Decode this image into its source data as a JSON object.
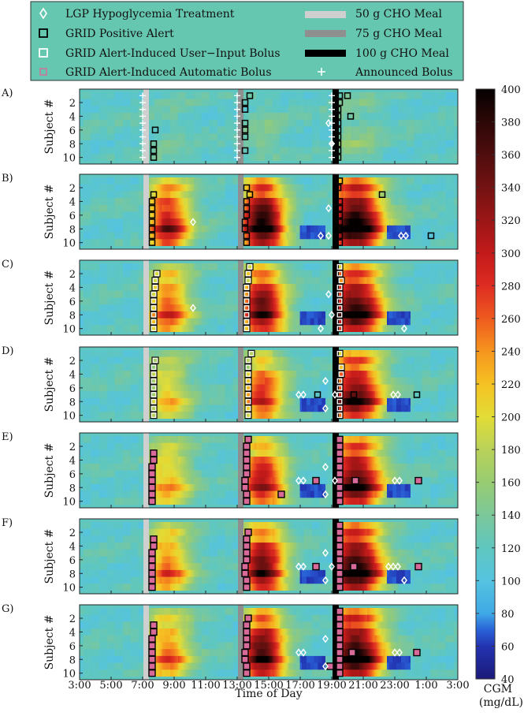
{
  "chart_data": {
    "type": "heatmap",
    "xlabel": "Time of Day",
    "x_ticks": [
      "3:00",
      "5:00",
      "7:00",
      "9:00",
      "11:00",
      "13:00",
      "15:00",
      "17:00",
      "19:00",
      "21:00",
      "23:00",
      "1:00",
      "3:00"
    ],
    "xlim_hours": [
      3,
      27
    ],
    "ylabel": "Subject #",
    "y_ticks": [
      "2",
      "4",
      "6",
      "8",
      "10"
    ],
    "subjects": 10,
    "panels": [
      "A)",
      "B)",
      "C)",
      "D)",
      "E)",
      "F)",
      "G)"
    ],
    "colorbar": {
      "label_line1": "CGM",
      "label_line2": "(mg/dL)",
      "range": [
        40,
        400
      ],
      "ticks": [
        "40",
        "60",
        "80",
        "100",
        "120",
        "140",
        "160",
        "180",
        "200",
        "220",
        "240",
        "260",
        "280",
        "300",
        "320",
        "340",
        "360",
        "380",
        "400"
      ]
    },
    "meals": [
      {
        "time": 7.0,
        "grams": 50,
        "color": "#cfcfcf"
      },
      {
        "time": 13.0,
        "grams": 75,
        "color": "#8f8f8f"
      },
      {
        "time": 19.0,
        "grams": 100,
        "color": "#000000"
      }
    ],
    "legend": {
      "lgp_hypo": "LGP Hypoglycemia Treatment",
      "grid_alert": "GRID Positive Alert",
      "grid_user_bolus": "GRID Alert-Induced User−Input Bolus",
      "grid_auto_bolus": "GRID Alert-Induced Automatic Bolus",
      "meal50": "50 g CHO Meal",
      "meal75": "75 g CHO Meal",
      "meal100": "100 g CHO Meal",
      "announced": "Announced Bolus",
      "bg_color": "#66c7b0"
    },
    "colors": {
      "lgp_marker": "#ffffff",
      "grid_alert": "#000000",
      "user_bolus": "#ffffff",
      "auto_bolus": "#d86a9a"
    },
    "markers": {
      "A)": {
        "announced": [
          {
            "t": 7.0,
            "subjects": [
              1,
              2,
              3,
              4,
              5,
              6,
              7,
              8,
              9,
              10
            ]
          },
          {
            "t": 13.0,
            "subjects": [
              1,
              2,
              3,
              4,
              5,
              6,
              7,
              8,
              9,
              10
            ]
          },
          {
            "t": 19.0,
            "subjects": [
              1,
              2,
              3,
              4,
              5,
              6,
              7,
              8,
              9,
              10
            ]
          }
        ],
        "alerts": [
          {
            "t": 7.8,
            "s": 6
          },
          {
            "t": 7.7,
            "s": 8
          },
          {
            "t": 7.7,
            "s": 9
          },
          {
            "t": 7.7,
            "s": 10
          },
          {
            "t": 13.8,
            "s": 1
          },
          {
            "t": 13.5,
            "s": 2
          },
          {
            "t": 13.5,
            "s": 3
          },
          {
            "t": 13.5,
            "s": 5
          },
          {
            "t": 13.5,
            "s": 6
          },
          {
            "t": 13.5,
            "s": 7
          },
          {
            "t": 13.5,
            "s": 9
          },
          {
            "t": 19.5,
            "s": 1
          },
          {
            "t": 19.5,
            "s": 2
          },
          {
            "t": 19.4,
            "s": 3
          },
          {
            "t": 19.4,
            "s": 4
          },
          {
            "t": 19.4,
            "s": 5
          },
          {
            "t": 19.4,
            "s": 6
          },
          {
            "t": 19.4,
            "s": 7
          },
          {
            "t": 19.4,
            "s": 8
          },
          {
            "t": 19.4,
            "s": 9
          },
          {
            "t": 19.4,
            "s": 10
          },
          {
            "t": 20.0,
            "s": 1
          },
          {
            "t": 20.2,
            "s": 4
          }
        ],
        "lgp": [
          {
            "t": 18.8,
            "s": 5
          },
          {
            "t": 19.0,
            "s": 8
          }
        ]
      },
      "B)": {
        "alerts": [
          {
            "t": 7.7,
            "s": 3
          },
          {
            "t": 7.6,
            "s": 4
          },
          {
            "t": 7.6,
            "s": 5
          },
          {
            "t": 7.6,
            "s": 6
          },
          {
            "t": 7.6,
            "s": 7
          },
          {
            "t": 7.6,
            "s": 8
          },
          {
            "t": 7.6,
            "s": 9
          },
          {
            "t": 7.6,
            "s": 10
          },
          {
            "t": 13.6,
            "s": 2
          },
          {
            "t": 13.8,
            "s": 3
          },
          {
            "t": 13.6,
            "s": 4
          },
          {
            "t": 13.6,
            "s": 5
          },
          {
            "t": 13.6,
            "s": 6
          },
          {
            "t": 13.5,
            "s": 7
          },
          {
            "t": 13.5,
            "s": 8
          },
          {
            "t": 13.6,
            "s": 9
          },
          {
            "t": 13.6,
            "s": 10
          },
          {
            "t": 19.5,
            "s": 1
          },
          {
            "t": 19.4,
            "s": 2
          },
          {
            "t": 19.5,
            "s": 4
          },
          {
            "t": 19.5,
            "s": 5
          },
          {
            "t": 19.5,
            "s": 6
          },
          {
            "t": 19.5,
            "s": 7
          },
          {
            "t": 19.5,
            "s": 8
          },
          {
            "t": 19.5,
            "s": 9
          },
          {
            "t": 19.5,
            "s": 10
          },
          {
            "t": 22.2,
            "s": 3
          },
          {
            "t": 25.3,
            "s": 9
          }
        ],
        "lgp": [
          {
            "t": 10.2,
            "s": 7
          },
          {
            "t": 18.3,
            "s": 9
          },
          {
            "t": 18.8,
            "s": 5
          },
          {
            "t": 18.8,
            "s": 9
          },
          {
            "t": 23.4,
            "s": 9
          },
          {
            "t": 23.7,
            "s": 9
          }
        ]
      },
      "C)": {
        "user_bolus": [
          {
            "t": 7.9,
            "s": 2
          },
          {
            "t": 7.8,
            "s": 3
          },
          {
            "t": 7.8,
            "s": 4
          },
          {
            "t": 7.7,
            "s": 5
          },
          {
            "t": 7.7,
            "s": 6
          },
          {
            "t": 7.7,
            "s": 7
          },
          {
            "t": 7.7,
            "s": 8
          },
          {
            "t": 7.7,
            "s": 9
          },
          {
            "t": 7.7,
            "s": 10
          },
          {
            "t": 13.8,
            "s": 1
          },
          {
            "t": 13.7,
            "s": 2
          },
          {
            "t": 13.7,
            "s": 3
          },
          {
            "t": 13.6,
            "s": 4
          },
          {
            "t": 13.6,
            "s": 5
          },
          {
            "t": 13.6,
            "s": 6
          },
          {
            "t": 13.6,
            "s": 7
          },
          {
            "t": 13.6,
            "s": 8
          },
          {
            "t": 13.6,
            "s": 9
          },
          {
            "t": 13.6,
            "s": 10
          },
          {
            "t": 19.5,
            "s": 1
          },
          {
            "t": 19.5,
            "s": 2
          },
          {
            "t": 19.6,
            "s": 3
          },
          {
            "t": 19.5,
            "s": 4
          },
          {
            "t": 19.5,
            "s": 5
          },
          {
            "t": 19.5,
            "s": 6
          },
          {
            "t": 19.5,
            "s": 7
          },
          {
            "t": 19.5,
            "s": 8
          },
          {
            "t": 19.5,
            "s": 9
          },
          {
            "t": 19.5,
            "s": 10
          }
        ],
        "lgp": [
          {
            "t": 10.2,
            "s": 7
          },
          {
            "t": 18.3,
            "s": 10
          },
          {
            "t": 18.8,
            "s": 5
          },
          {
            "t": 19.0,
            "s": 8
          },
          {
            "t": 23.6,
            "s": 10
          }
        ]
      },
      "D)": {
        "user_bolus": [
          {
            "t": 7.8,
            "s": 2
          },
          {
            "t": 7.7,
            "s": 3
          },
          {
            "t": 7.7,
            "s": 4
          },
          {
            "t": 7.7,
            "s": 5
          },
          {
            "t": 7.7,
            "s": 6
          },
          {
            "t": 7.7,
            "s": 7
          },
          {
            "t": 7.7,
            "s": 8
          },
          {
            "t": 7.7,
            "s": 9
          },
          {
            "t": 7.7,
            "s": 10
          },
          {
            "t": 13.9,
            "s": 1
          },
          {
            "t": 13.7,
            "s": 2
          },
          {
            "t": 13.7,
            "s": 3
          },
          {
            "t": 13.7,
            "s": 4
          },
          {
            "t": 13.7,
            "s": 5
          },
          {
            "t": 13.7,
            "s": 6
          },
          {
            "t": 13.7,
            "s": 7
          },
          {
            "t": 13.7,
            "s": 8
          },
          {
            "t": 13.7,
            "s": 9
          },
          {
            "t": 13.7,
            "s": 10
          },
          {
            "t": 19.5,
            "s": 1
          },
          {
            "t": 19.6,
            "s": 3
          },
          {
            "t": 19.6,
            "s": 4
          },
          {
            "t": 19.5,
            "s": 5
          },
          {
            "t": 19.5,
            "s": 6
          },
          {
            "t": 19.5,
            "s": 7
          },
          {
            "t": 19.5,
            "s": 8
          },
          {
            "t": 19.5,
            "s": 9
          },
          {
            "t": 19.5,
            "s": 10
          }
        ],
        "alerts": [
          {
            "t": 18.1,
            "s": 7
          },
          {
            "t": 20.4,
            "s": 7
          },
          {
            "t": 24.4,
            "s": 7
          }
        ],
        "lgp": [
          {
            "t": 16.9,
            "s": 7
          },
          {
            "t": 17.2,
            "s": 7
          },
          {
            "t": 18.6,
            "s": 5
          },
          {
            "t": 18.6,
            "s": 9
          },
          {
            "t": 19.2,
            "s": 7
          },
          {
            "t": 22.9,
            "s": 7
          },
          {
            "t": 23.2,
            "s": 7
          }
        ]
      },
      "E)": {
        "auto_bolus": [
          {
            "t": 7.7,
            "s": 3
          },
          {
            "t": 7.7,
            "s": 4
          },
          {
            "t": 7.6,
            "s": 5
          },
          {
            "t": 7.6,
            "s": 6
          },
          {
            "t": 7.6,
            "s": 7
          },
          {
            "t": 7.6,
            "s": 8
          },
          {
            "t": 7.6,
            "s": 9
          },
          {
            "t": 7.6,
            "s": 10
          },
          {
            "t": 13.7,
            "s": 1
          },
          {
            "t": 13.6,
            "s": 2
          },
          {
            "t": 13.6,
            "s": 3
          },
          {
            "t": 13.6,
            "s": 4
          },
          {
            "t": 13.6,
            "s": 5
          },
          {
            "t": 13.6,
            "s": 6
          },
          {
            "t": 13.5,
            "s": 7
          },
          {
            "t": 13.5,
            "s": 8
          },
          {
            "t": 13.6,
            "s": 9
          },
          {
            "t": 13.6,
            "s": 10
          },
          {
            "t": 19.5,
            "s": 1
          },
          {
            "t": 19.5,
            "s": 2
          },
          {
            "t": 19.5,
            "s": 3
          },
          {
            "t": 19.5,
            "s": 4
          },
          {
            "t": 19.5,
            "s": 5
          },
          {
            "t": 19.5,
            "s": 6
          },
          {
            "t": 19.5,
            "s": 7
          },
          {
            "t": 19.5,
            "s": 8
          },
          {
            "t": 19.5,
            "s": 9
          },
          {
            "t": 19.5,
            "s": 10
          },
          {
            "t": 15.8,
            "s": 9
          },
          {
            "t": 18.0,
            "s": 7
          },
          {
            "t": 20.5,
            "s": 7
          },
          {
            "t": 24.5,
            "s": 7
          }
        ],
        "lgp": [
          {
            "t": 16.9,
            "s": 7
          },
          {
            "t": 17.2,
            "s": 7
          },
          {
            "t": 18.6,
            "s": 5
          },
          {
            "t": 18.6,
            "s": 9
          },
          {
            "t": 19.2,
            "s": 7
          },
          {
            "t": 23.0,
            "s": 7
          },
          {
            "t": 23.3,
            "s": 7
          }
        ]
      },
      "F)": {
        "auto_bolus": [
          {
            "t": 7.7,
            "s": 3
          },
          {
            "t": 7.7,
            "s": 4
          },
          {
            "t": 7.6,
            "s": 5
          },
          {
            "t": 7.6,
            "s": 6
          },
          {
            "t": 7.6,
            "s": 7
          },
          {
            "t": 7.6,
            "s": 8
          },
          {
            "t": 7.6,
            "s": 9
          },
          {
            "t": 7.6,
            "s": 10
          },
          {
            "t": 13.7,
            "s": 2
          },
          {
            "t": 13.6,
            "s": 3
          },
          {
            "t": 13.6,
            "s": 4
          },
          {
            "t": 13.6,
            "s": 5
          },
          {
            "t": 13.6,
            "s": 6
          },
          {
            "t": 13.5,
            "s": 7
          },
          {
            "t": 13.5,
            "s": 8
          },
          {
            "t": 13.6,
            "s": 9
          },
          {
            "t": 13.6,
            "s": 10
          },
          {
            "t": 19.5,
            "s": 1
          },
          {
            "t": 19.5,
            "s": 2
          },
          {
            "t": 19.5,
            "s": 3
          },
          {
            "t": 19.5,
            "s": 4
          },
          {
            "t": 19.5,
            "s": 5
          },
          {
            "t": 19.5,
            "s": 6
          },
          {
            "t": 19.5,
            "s": 7
          },
          {
            "t": 19.5,
            "s": 8
          },
          {
            "t": 19.5,
            "s": 9
          },
          {
            "t": 19.5,
            "s": 10
          },
          {
            "t": 18.0,
            "s": 7
          },
          {
            "t": 20.4,
            "s": 7
          },
          {
            "t": 24.5,
            "s": 7
          }
        ],
        "lgp": [
          {
            "t": 16.9,
            "s": 7
          },
          {
            "t": 17.2,
            "s": 7
          },
          {
            "t": 18.6,
            "s": 5
          },
          {
            "t": 18.6,
            "s": 9
          },
          {
            "t": 19.0,
            "s": 7
          },
          {
            "t": 22.6,
            "s": 7
          },
          {
            "t": 22.9,
            "s": 7
          },
          {
            "t": 23.2,
            "s": 7
          },
          {
            "t": 23.6,
            "s": 9
          }
        ]
      },
      "G)": {
        "auto_bolus": [
          {
            "t": 7.7,
            "s": 3
          },
          {
            "t": 7.7,
            "s": 4
          },
          {
            "t": 7.6,
            "s": 5
          },
          {
            "t": 7.6,
            "s": 6
          },
          {
            "t": 7.6,
            "s": 7
          },
          {
            "t": 7.6,
            "s": 8
          },
          {
            "t": 7.6,
            "s": 9
          },
          {
            "t": 7.6,
            "s": 10
          },
          {
            "t": 13.7,
            "s": 2
          },
          {
            "t": 13.6,
            "s": 3
          },
          {
            "t": 13.6,
            "s": 4
          },
          {
            "t": 13.6,
            "s": 5
          },
          {
            "t": 13.6,
            "s": 6
          },
          {
            "t": 13.5,
            "s": 7
          },
          {
            "t": 13.5,
            "s": 8
          },
          {
            "t": 13.6,
            "s": 9
          },
          {
            "t": 13.6,
            "s": 10
          },
          {
            "t": 19.5,
            "s": 1
          },
          {
            "t": 19.5,
            "s": 2
          },
          {
            "t": 19.5,
            "s": 3
          },
          {
            "t": 19.5,
            "s": 4
          },
          {
            "t": 19.5,
            "s": 5
          },
          {
            "t": 19.5,
            "s": 6
          },
          {
            "t": 19.5,
            "s": 7
          },
          {
            "t": 19.5,
            "s": 8
          },
          {
            "t": 19.5,
            "s": 9
          },
          {
            "t": 19.5,
            "s": 10
          },
          {
            "t": 18.9,
            "s": 9
          },
          {
            "t": 20.3,
            "s": 7
          },
          {
            "t": 24.4,
            "s": 7
          }
        ],
        "lgp": [
          {
            "t": 16.9,
            "s": 7
          },
          {
            "t": 17.2,
            "s": 7
          },
          {
            "t": 18.6,
            "s": 5
          },
          {
            "t": 18.6,
            "s": 9
          },
          {
            "t": 23.0,
            "s": 7
          },
          {
            "t": 23.3,
            "s": 7
          }
        ]
      }
    }
  }
}
